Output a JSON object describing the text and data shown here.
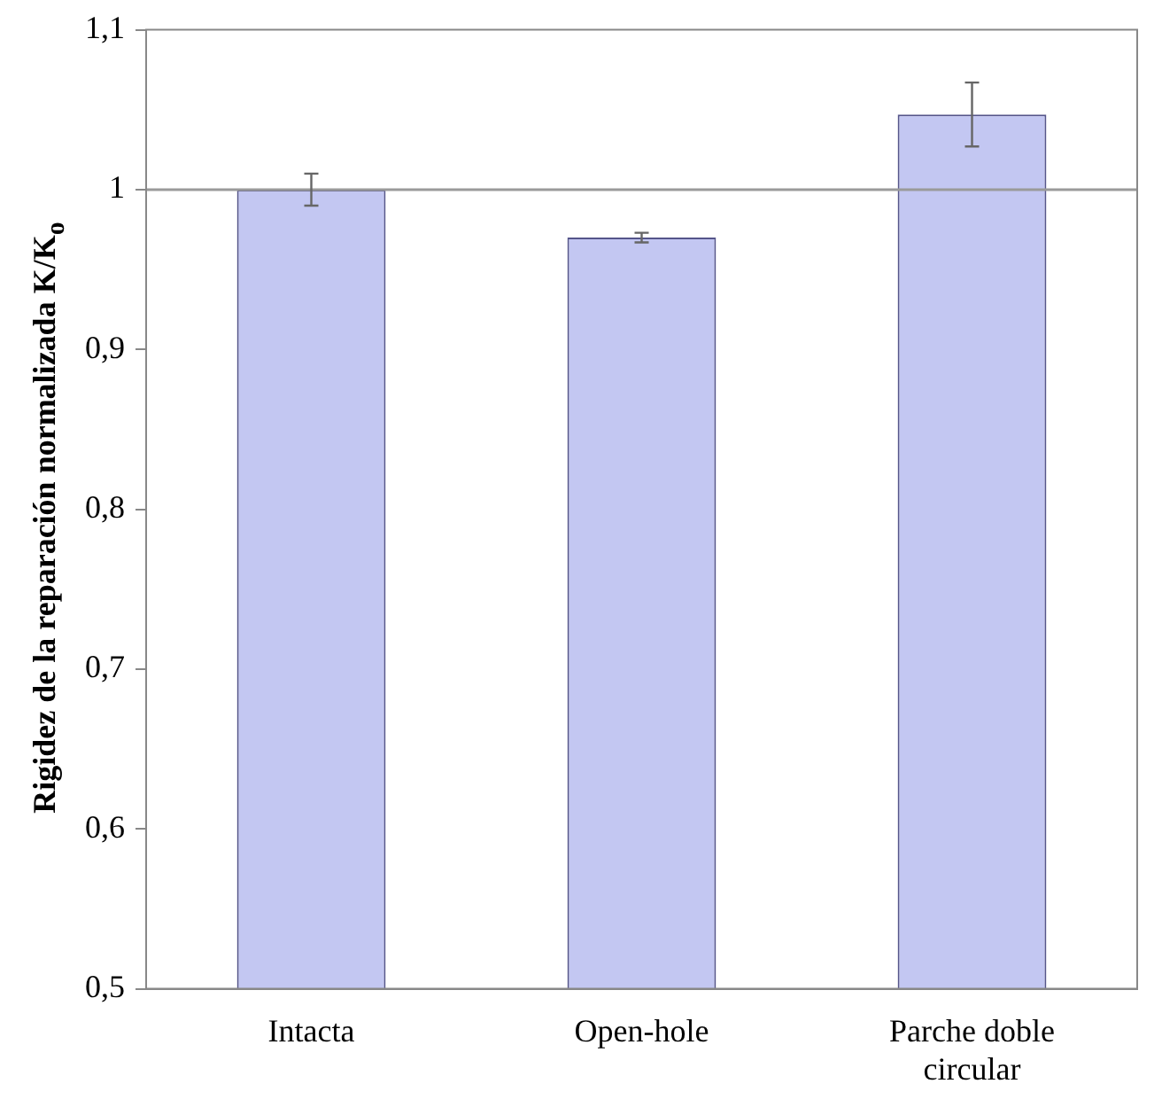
{
  "chart_data": {
    "type": "bar",
    "ylabel": "Rigidez de la reparación normalizada K/K$_{o}$",
    "categories": [
      "Intacta",
      "Open-hole",
      "Parche doble circular"
    ],
    "values": [
      1.0,
      0.97,
      1.047
    ],
    "errors": [
      0.01,
      0.003,
      0.02
    ],
    "color": "#c3c7f2",
    "ylim": [
      0.5,
      1.1
    ],
    "yticks": [
      {
        "value": 0.5,
        "label": "0,5"
      },
      {
        "value": 0.6,
        "label": "0,6"
      },
      {
        "value": 0.7,
        "label": "0,7"
      },
      {
        "value": 0.8,
        "label": "0,8"
      },
      {
        "value": 0.9,
        "label": "0,9"
      },
      {
        "value": 1,
        "label": "1"
      },
      {
        "value": 1.1,
        "label": "1,1"
      }
    ],
    "ref_lines": [
      {
        "axis": "y",
        "value": 1,
        "color": "#9a9a9a"
      }
    ],
    "grid": false,
    "legend": false
  }
}
